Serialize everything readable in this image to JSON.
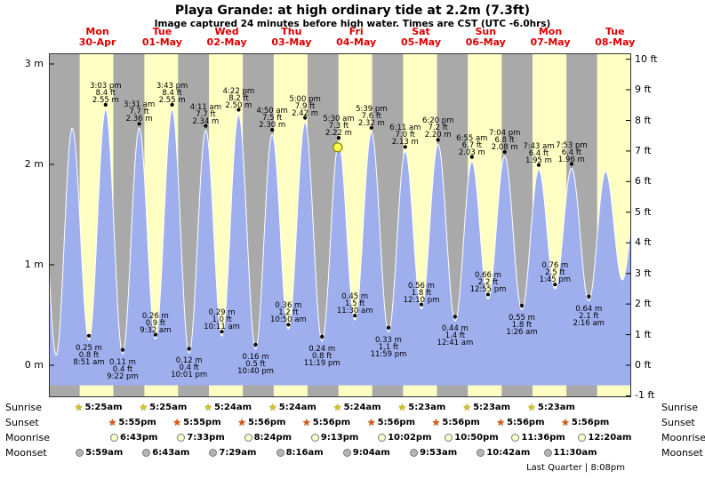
{
  "chart_data": {
    "type": "area",
    "title": "Playa Grande: at high  ordinary tide at 2.2m (7.3ft)",
    "subtitle": "Image captured 24 minutes before high water. Times are CST (UTC -6.0hrs)",
    "ylim_m": [
      -0.32,
      3.1
    ],
    "left_unit": "m",
    "right_unit": "ft",
    "tide_extremes": [
      {
        "type": "high",
        "day": -1,
        "time": "2:24 pm",
        "m": "2.40 m",
        "labeled": false
      },
      {
        "type": "low",
        "day": -1,
        "time": "8:42 pm",
        "m": "0.10 m",
        "labeled": false
      },
      {
        "type": "high",
        "day": 0,
        "time": "2:39 am",
        "m": "2.36 m",
        "labeled": false
      },
      {
        "type": "low",
        "day": 0,
        "time": "8:51 am",
        "m": "0.25 m",
        "ft": "0.8 ft",
        "labeled": true,
        "label_below": true
      },
      {
        "type": "high",
        "day": 0,
        "time": "3:03 pm",
        "ft": "8.4 ft",
        "m": "2.55 m",
        "labeled": true
      },
      {
        "type": "low",
        "day": 0,
        "time": "9:22 pm",
        "m": "0.11 m",
        "ft": "0.4 ft",
        "labeled": true,
        "label_below": true
      },
      {
        "type": "high",
        "day": 1,
        "time": "3:31 am",
        "ft": "7.7 ft",
        "m": "2.36 m",
        "labeled": true
      },
      {
        "type": "low",
        "day": 1,
        "time": "9:32 am",
        "m": "0.26 m",
        "ft": "0.9 ft",
        "labeled": true,
        "label_below": false
      },
      {
        "type": "high",
        "day": 1,
        "time": "3:43 pm",
        "ft": "8.4 ft",
        "m": "2.55 m",
        "labeled": true
      },
      {
        "type": "low",
        "day": 1,
        "time": "10:01 pm",
        "m": "0.12 m",
        "ft": "0.4 ft",
        "labeled": true,
        "label_below": true
      },
      {
        "type": "high",
        "day": 2,
        "time": "4:11 am",
        "ft": "7.7 ft",
        "m": "2.34 m",
        "labeled": true
      },
      {
        "type": "low",
        "day": 2,
        "time": "10:11 am",
        "m": "0.29 m",
        "ft": "1.0 ft",
        "labeled": true,
        "label_below": false
      },
      {
        "type": "high",
        "day": 2,
        "time": "4:22 pm",
        "ft": "8.2 ft",
        "m": "2.50 m",
        "labeled": true
      },
      {
        "type": "low",
        "day": 2,
        "time": "10:40 pm",
        "m": "0.16 m",
        "ft": "0.5 ft",
        "labeled": true,
        "label_below": true
      },
      {
        "type": "high",
        "day": 3,
        "time": "4:50 am",
        "ft": "7.5 ft",
        "m": "2.30 m",
        "labeled": true
      },
      {
        "type": "low",
        "day": 3,
        "time": "10:50 am",
        "m": "0.36 m",
        "ft": "1.2 ft",
        "labeled": true,
        "label_below": false
      },
      {
        "type": "high",
        "day": 3,
        "time": "5:00 pm",
        "ft": "7.9 ft",
        "m": "2.42 m",
        "labeled": true
      },
      {
        "type": "low",
        "day": 3,
        "time": "11:19 pm",
        "m": "0.24 m",
        "ft": "0.8 ft",
        "labeled": true,
        "label_below": true
      },
      {
        "type": "high",
        "day": 4,
        "time": "5:30 am",
        "ft": "7.3 ft",
        "m": "2.22 m",
        "labeled": true
      },
      {
        "type": "low",
        "day": 4,
        "time": "11:30 am",
        "m": "0.45 m",
        "ft": "1.5 ft",
        "labeled": true,
        "label_below": false
      },
      {
        "type": "high",
        "day": 4,
        "time": "5:39 pm",
        "ft": "7.6 ft",
        "m": "2.32 m",
        "labeled": true
      },
      {
        "type": "low",
        "day": 4,
        "time": "11:59 pm",
        "m": "0.33 m",
        "ft": "1.1 ft",
        "labeled": true,
        "label_below": true
      },
      {
        "type": "high",
        "day": 5,
        "time": "6:11 am",
        "ft": "7.0 ft",
        "m": "2.13 m",
        "labeled": true
      },
      {
        "type": "low",
        "day": 5,
        "time": "12:10 pm",
        "m": "0.56 m",
        "ft": "1.8 ft",
        "labeled": true,
        "label_below": false
      },
      {
        "type": "high",
        "day": 5,
        "time": "6:20 pm",
        "ft": "7.2 ft",
        "m": "2.20 m",
        "labeled": true
      },
      {
        "type": "low",
        "day": 6,
        "time": "12:41 am",
        "m": "0.44 m",
        "ft": "1.4 ft",
        "labeled": true,
        "label_below": true
      },
      {
        "type": "high",
        "day": 6,
        "time": "6:55 am",
        "ft": "6.7 ft",
        "m": "2.03 m",
        "labeled": true
      },
      {
        "type": "low",
        "day": 6,
        "time": "12:55 pm",
        "m": "0.66 m",
        "ft": "2.2 ft",
        "labeled": true,
        "label_below": false
      },
      {
        "type": "high",
        "day": 6,
        "time": "7:04 pm",
        "ft": "6.8 ft",
        "m": "2.08 m",
        "labeled": true
      },
      {
        "type": "low",
        "day": 7,
        "time": "1:26 am",
        "m": "0.55 m",
        "ft": "1.8 ft",
        "labeled": true,
        "label_below": true
      },
      {
        "type": "high",
        "day": 7,
        "time": "7:43 am",
        "ft": "6.4 ft",
        "m": "1.95 m",
        "labeled": true
      },
      {
        "type": "low",
        "day": 7,
        "time": "1:45 pm",
        "m": "0.76 m",
        "ft": "2.5 ft",
        "labeled": true,
        "label_below": false
      },
      {
        "type": "high",
        "day": 7,
        "time": "7:53 pm",
        "ft": "6.4 ft",
        "m": "1.96 m",
        "labeled": true
      },
      {
        "type": "low",
        "day": 8,
        "time": "2:16 am",
        "m": "0.64 m",
        "ft": "2.1 ft",
        "labeled": true,
        "label_below": true
      },
      {
        "type": "high",
        "day": 8,
        "time": "8:30 am",
        "m": "1.93 m",
        "labeled": false
      },
      {
        "type": "low",
        "day": 8,
        "time": "2:45 pm",
        "m": "0.85 m",
        "labeled": false
      },
      {
        "type": "high",
        "day": 8,
        "time": "8:55 pm",
        "m": "1.95 m",
        "labeled": false
      }
    ],
    "current_time_marker": {
      "day": 4,
      "time": "5:06 am",
      "height_m": 2.17,
      "note": "24 minutes before high water"
    }
  },
  "axes": {
    "left_ticks": [
      "3 m",
      "2 m",
      "1 m",
      "0 m"
    ],
    "right_ticks": [
      "10 ft",
      "9 ft",
      "8 ft",
      "7 ft",
      "6 ft",
      "5 ft",
      "4 ft",
      "3 ft",
      "2 ft",
      "1 ft",
      "0 ft",
      "-1 ft"
    ]
  },
  "days": [
    {
      "name": "Mon",
      "date": "30-Apr"
    },
    {
      "name": "Tue",
      "date": "01-May"
    },
    {
      "name": "Wed",
      "date": "02-May"
    },
    {
      "name": "Thu",
      "date": "03-May"
    },
    {
      "name": "Fri",
      "date": "04-May"
    },
    {
      "name": "Sat",
      "date": "05-May"
    },
    {
      "name": "Sun",
      "date": "06-May"
    },
    {
      "name": "Mon",
      "date": "07-May"
    },
    {
      "name": "Tue",
      "date": "08-May"
    }
  ],
  "astro": {
    "row_labels": [
      "Sunrise",
      "Sunset",
      "Moonrise",
      "Moonset"
    ],
    "sunrise": [
      {
        "day": 0,
        "time": "5:25am"
      },
      {
        "day": 1,
        "time": "5:25am"
      },
      {
        "day": 2,
        "time": "5:24am"
      },
      {
        "day": 3,
        "time": "5:24am"
      },
      {
        "day": 4,
        "time": "5:24am"
      },
      {
        "day": 5,
        "time": "5:23am"
      },
      {
        "day": 6,
        "time": "5:23am"
      },
      {
        "day": 7,
        "time": "5:23am"
      }
    ],
    "sunset": [
      {
        "day": 0,
        "time": "5:55pm"
      },
      {
        "day": 1,
        "time": "5:55pm"
      },
      {
        "day": 2,
        "time": "5:56pm"
      },
      {
        "day": 3,
        "time": "5:56pm"
      },
      {
        "day": 4,
        "time": "5:56pm"
      },
      {
        "day": 5,
        "time": "5:56pm"
      },
      {
        "day": 6,
        "time": "5:56pm"
      },
      {
        "day": 7,
        "time": "5:56pm"
      }
    ],
    "moonrise": [
      {
        "day": 0,
        "time": "6:43pm"
      },
      {
        "day": 1,
        "time": "7:33pm"
      },
      {
        "day": 2,
        "time": "8:24pm"
      },
      {
        "day": 3,
        "time": "9:13pm"
      },
      {
        "day": 4,
        "time": "10:02pm"
      },
      {
        "day": 5,
        "time": "10:50pm"
      },
      {
        "day": 6,
        "time": "11:36pm"
      },
      {
        "day": 8,
        "time": "12:20am"
      }
    ],
    "moonset": [
      {
        "day": 0,
        "time": "5:59am"
      },
      {
        "day": 1,
        "time": "6:43am"
      },
      {
        "day": 2,
        "time": "7:29am"
      },
      {
        "day": 3,
        "time": "8:16am"
      },
      {
        "day": 4,
        "time": "9:04am"
      },
      {
        "day": 5,
        "time": "9:53am"
      },
      {
        "day": 6,
        "time": "10:42am"
      },
      {
        "day": 7,
        "time": "11:30am"
      }
    ],
    "moon_phase": "Last Quarter | 8:08pm"
  },
  "colors": {
    "day_band": "#ffffc4",
    "night_band": "#a9a9a9",
    "tide_fill": "#9fafee",
    "tide_stroke": "#ffffff",
    "day_label_red": "#dd0000",
    "marker_fill": "#ffff55",
    "marker_stroke": "#8a8a00",
    "sunrise_star": "#d4c520",
    "sunset_star": "#e0561a",
    "moonrise_fill": "#ffffcc",
    "moonset_fill": "#b5b5b5"
  }
}
